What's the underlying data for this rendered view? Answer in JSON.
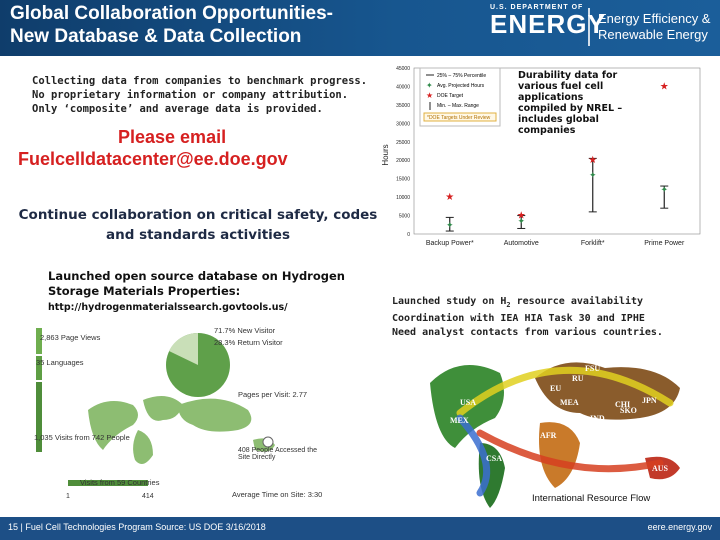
{
  "header": {
    "title_line1": "Global Collaboration Opportunities-",
    "title_line2": "New Database & Data Collection",
    "doe_small": "U.S. DEPARTMENT OF",
    "doe_big": "ENERGY",
    "eere_line1": "Energy Efficiency &",
    "eere_line2": "Renewable Energy"
  },
  "left": {
    "collect": "Collecting data from companies to benchmark progress.  No proprietary information or company attribution.  Only ‘composite’ and average data is provided.",
    "email_line1": "Please email",
    "email_line2": "Fuelcelldatacenter@ee.doe.gov",
    "continue": "Continue collaboration on critical safety, codes and standards activities",
    "launched": "Launched open source database on Hydrogen Storage Materials Properties:",
    "url": "http://hydrogenmaterialssearch.govtools.us/"
  },
  "stats": {
    "page_views": "2,863 Page Views",
    "languages": "35 Languages",
    "new_visitor": "71.7% New Visitor",
    "return_visitor": "28.3% Return Visitor",
    "pages_per_visit": "Pages per Visit: 2.77",
    "visits": "1,035 Visits from 742 People",
    "direct_access": "408 People Accessed the Site Directly",
    "countries": "Visits from 59 Countries",
    "time_on_site": "Average Time on Site: 3:30",
    "scale_min": "1",
    "scale_max": "414"
  },
  "chart_note": "Durability data for various fuel cell applications compiled by NREL – includes global companies",
  "chart_data": {
    "type": "scatter",
    "ylabel": "Hours",
    "ylim": [
      0,
      45000
    ],
    "yticks": [
      "45000",
      "40000",
      "35000",
      "30000",
      "25000",
      "20000",
      "15000",
      "10000",
      "5000",
      "0"
    ],
    "categories": [
      "Backup Power*",
      "Automotive",
      "Forklift*",
      "Prime Power"
    ],
    "legend": [
      "25% – 75% Percentile",
      "Avg. Projected Hours",
      "DOE Target",
      "Min. – Max. Range",
      "*DOE Targets Under Review"
    ],
    "series": [
      {
        "name": "DOE Target",
        "values": [
          10000,
          5000,
          20000,
          40000
        ]
      },
      {
        "name": "Avg. Projected Hours",
        "values": [
          2500,
          3500,
          16000,
          12000
        ]
      }
    ],
    "ranges": [
      {
        "min": 800,
        "max": 4500
      },
      {
        "min": 1500,
        "max": 5000
      },
      {
        "min": 6000,
        "max": 20500
      },
      {
        "min": 7000,
        "max": 13000
      }
    ],
    "colors": {
      "target": "#d62020",
      "avg": "#2f8a4a",
      "range": "#222222"
    }
  },
  "study": {
    "line1_a": "Launched study on H",
    "line1_sub": "2",
    "line1_b": " resource availability",
    "line2": "Coordination with IEA HIA Task 30 and IPHE",
    "line3": "Need analyst contacts from various countries."
  },
  "map": {
    "labels": [
      "USA",
      "MEX",
      "EU",
      "CSA",
      "AFR",
      "RU",
      "MEA",
      "SKO",
      "JPN",
      "CHI",
      "IND",
      "ODA",
      "AUS",
      "FSU"
    ],
    "caption": "International Resource Flow"
  },
  "footer": {
    "left": "15 | Fuel Cell Technologies Program Source: US DOE 3/16/2018",
    "right": "eere.energy.gov"
  }
}
